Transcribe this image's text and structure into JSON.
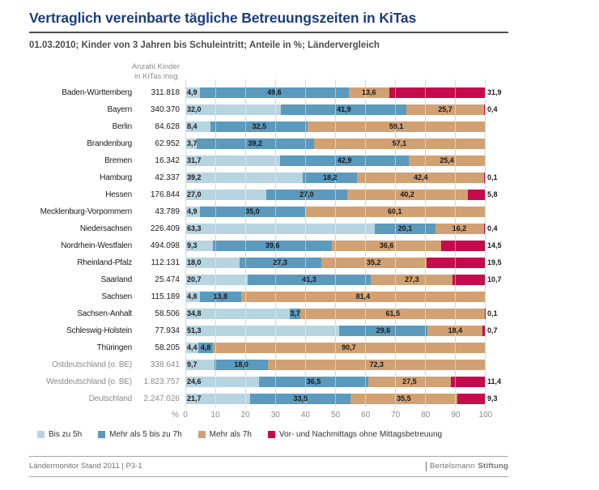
{
  "title": "Vertraglich vereinbarte tägliche Betreuungszeiten in KiTas",
  "subtitle": "01.03.2010; Kinder von 3 Jahren bis Schuleintritt; Anteile in %; Ländervergleich",
  "column_header": {
    "line1": "Anzahl Kinder",
    "line2": "in KiTas insg."
  },
  "axis": {
    "unit": "%"
  },
  "colors": {
    "segments": [
      "#b7d4e1",
      "#5b99bd",
      "#d1a173",
      "#c50b4c"
    ],
    "title": "#1c3d7d",
    "muted_label": "#8c8c8c",
    "gridline": "#d8d8d8"
  },
  "footer": {
    "source": "Ländermonitor Stand 2011 | P3-1",
    "brand_regular": "Bertelsmann",
    "brand_bold": "Stiftung"
  },
  "chart_data": {
    "type": "bar",
    "orientation": "horizontal",
    "stacked": true,
    "title": "Vertraglich vereinbarte tägliche Betreuungszeiten in KiTas",
    "xlabel": "%",
    "xlim": [
      0,
      100
    ],
    "xticks": [
      0,
      10,
      20,
      30,
      40,
      50,
      60,
      70,
      80,
      90,
      100
    ],
    "grid": true,
    "legend_position": "bottom",
    "series_names": [
      "Bis zu 5h",
      "Mehr als 5 bis zu 7h",
      "Mehr als 7h",
      "Vor- und Nachmittags ohne Mittagsbetreuung"
    ],
    "rows": [
      {
        "label": "Baden-Württemberg",
        "count": "311.818",
        "values": [
          4.9,
          49.6,
          13.6,
          31.9
        ],
        "muted": false
      },
      {
        "label": "Bayern",
        "count": "340.370",
        "values": [
          32.0,
          41.9,
          25.7,
          0.4
        ],
        "muted": false
      },
      {
        "label": "Berlin",
        "count": "84.628",
        "values": [
          8.4,
          32.5,
          59.1,
          null
        ],
        "muted": false
      },
      {
        "label": "Brandenburg",
        "count": "62.952",
        "values": [
          3.7,
          39.2,
          57.1,
          null
        ],
        "muted": false
      },
      {
        "label": "Bremen",
        "count": "16.342",
        "values": [
          31.7,
          42.9,
          25.4,
          null
        ],
        "muted": false
      },
      {
        "label": "Hamburg",
        "count": "42.337",
        "values": [
          39.2,
          18.2,
          42.4,
          0.1
        ],
        "muted": false
      },
      {
        "label": "Hessen",
        "count": "176.844",
        "values": [
          27.0,
          27.0,
          40.2,
          5.8
        ],
        "muted": false
      },
      {
        "label": "Mecklenburg-Vorpommern",
        "count": "43.789",
        "values": [
          4.9,
          35.0,
          60.1,
          null
        ],
        "muted": false
      },
      {
        "label": "Niedersachsen",
        "count": "226.409",
        "values": [
          63.3,
          20.1,
          16.2,
          0.4
        ],
        "muted": false
      },
      {
        "label": "Nordrhein-Westfalen",
        "count": "494.098",
        "values": [
          9.3,
          39.6,
          36.6,
          14.5
        ],
        "muted": false
      },
      {
        "label": "Rheinland-Pfalz",
        "count": "112.131",
        "values": [
          18.0,
          27.3,
          35.2,
          19.5
        ],
        "muted": false
      },
      {
        "label": "Saarland",
        "count": "25.474",
        "values": [
          20.7,
          41.3,
          27.3,
          10.7
        ],
        "muted": false
      },
      {
        "label": "Sachsen",
        "count": "115.189",
        "values": [
          4.8,
          13.8,
          81.4,
          null
        ],
        "muted": false
      },
      {
        "label": "Sachsen-Anhalt",
        "count": "58.506",
        "values": [
          34.8,
          3.7,
          61.5,
          0.1
        ],
        "muted": false
      },
      {
        "label": "Schleswig-Holstein",
        "count": "77.934",
        "values": [
          51.3,
          29.6,
          18.4,
          0.7
        ],
        "muted": false
      },
      {
        "label": "Thüringen",
        "count": "58.205",
        "values": [
          4.4,
          4.8,
          90.7,
          null
        ],
        "muted": false
      },
      {
        "label": "Ostdeutschland (o. BE)",
        "count": "338.641",
        "values": [
          9.7,
          18.0,
          72.3,
          null
        ],
        "muted": true
      },
      {
        "label": "Westdeutschland (o. BE)",
        "count": "1.823.757",
        "values": [
          24.6,
          36.5,
          27.5,
          11.4
        ],
        "muted": true
      },
      {
        "label": "Deutschland",
        "count": "2.247.026",
        "values": [
          21.7,
          33.5,
          35.5,
          9.3
        ],
        "muted": true
      }
    ]
  }
}
